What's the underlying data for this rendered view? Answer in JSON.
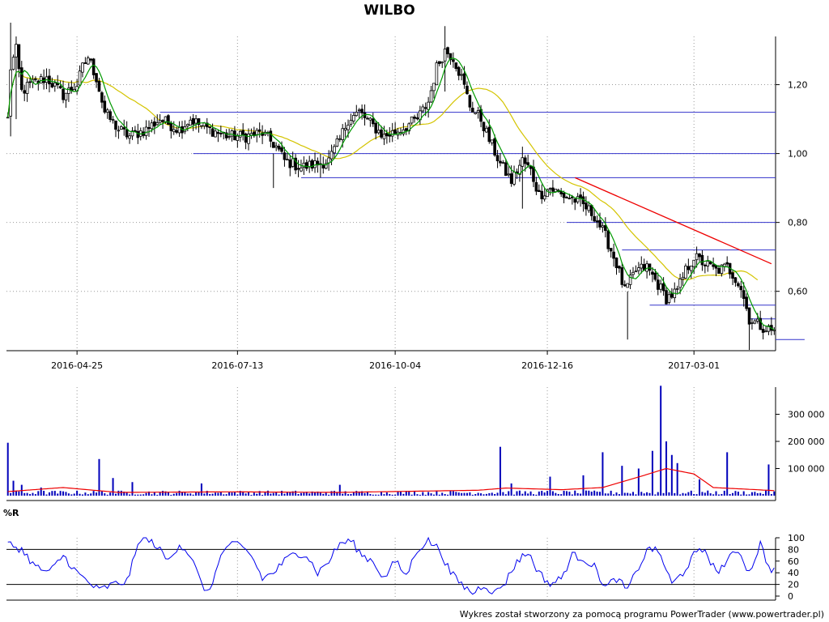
{
  "chart_data": {
    "type": "candlestick",
    "title": "WILBO",
    "credit": "Wykres został stworzony za pomocą programu PowerTrader (www.powertrader.pl)",
    "colors": {
      "candle": "#000000",
      "ma_fast": "#009900",
      "ma_slow": "#d4c400",
      "support_lines": "#3333cc",
      "trendline": "#ee0000",
      "volume": "#0000bb",
      "volume_ma": "#ee0000",
      "wr_line": "#0000ee",
      "level_lines": "#000000"
    },
    "x_ticks": [
      "2016-04-25",
      "2016-07-13",
      "2016-10-04",
      "2016-12-16",
      "2017-03-01"
    ],
    "x_tick_index": [
      25,
      83,
      140,
      195,
      248
    ],
    "bar_count": 278,
    "price_panel": {
      "ylim": [
        0.43,
        1.38
      ],
      "y_ticks": [
        1.2,
        1.0,
        0.8,
        0.6
      ],
      "y_tick_labels": [
        "1,20",
        "1,00",
        "0,80",
        "0,60"
      ],
      "anchors": [
        [
          0,
          1.1
        ],
        [
          1,
          1.25
        ],
        [
          3,
          1.3
        ],
        [
          5,
          1.18
        ],
        [
          8,
          1.2
        ],
        [
          14,
          1.22
        ],
        [
          20,
          1.17
        ],
        [
          25,
          1.2
        ],
        [
          27,
          1.25
        ],
        [
          29,
          1.28
        ],
        [
          32,
          1.22
        ],
        [
          35,
          1.12
        ],
        [
          40,
          1.07
        ],
        [
          44,
          1.05
        ],
        [
          50,
          1.07
        ],
        [
          55,
          1.1
        ],
        [
          62,
          1.07
        ],
        [
          66,
          1.1
        ],
        [
          70,
          1.08
        ],
        [
          76,
          1.06
        ],
        [
          80,
          1.05
        ],
        [
          86,
          1.05
        ],
        [
          92,
          1.06
        ],
        [
          97,
          1.02
        ],
        [
          100,
          0.98
        ],
        [
          106,
          0.96
        ],
        [
          112,
          0.97
        ],
        [
          116,
          0.98
        ],
        [
          120,
          1.04
        ],
        [
          123,
          1.1
        ],
        [
          127,
          1.12
        ],
        [
          132,
          1.08
        ],
        [
          136,
          1.05
        ],
        [
          142,
          1.07
        ],
        [
          148,
          1.1
        ],
        [
          152,
          1.15
        ],
        [
          155,
          1.25
        ],
        [
          158,
          1.3
        ],
        [
          161,
          1.28
        ],
        [
          164,
          1.22
        ],
        [
          167,
          1.14
        ],
        [
          171,
          1.1
        ],
        [
          174,
          1.04
        ],
        [
          178,
          0.97
        ],
        [
          182,
          0.92
        ],
        [
          186,
          0.98
        ],
        [
          189,
          0.95
        ],
        [
          192,
          0.88
        ],
        [
          196,
          0.9
        ],
        [
          200,
          0.88
        ],
        [
          204,
          0.87
        ],
        [
          208,
          0.85
        ],
        [
          212,
          0.82
        ],
        [
          216,
          0.76
        ],
        [
          220,
          0.68
        ],
        [
          223,
          0.6
        ],
        [
          227,
          0.66
        ],
        [
          231,
          0.67
        ],
        [
          235,
          0.62
        ],
        [
          238,
          0.58
        ],
        [
          242,
          0.6
        ],
        [
          245,
          0.66
        ],
        [
          248,
          0.7
        ],
        [
          252,
          0.68
        ],
        [
          256,
          0.66
        ],
        [
          260,
          0.67
        ],
        [
          263,
          0.64
        ],
        [
          265,
          0.61
        ],
        [
          268,
          0.52
        ],
        [
          272,
          0.5
        ],
        [
          275,
          0.49
        ],
        [
          278,
          0.48
        ]
      ],
      "spikes": [
        {
          "i": 1,
          "high": 1.38,
          "low": 1.05
        },
        {
          "i": 3,
          "high": 1.34,
          "low": 1.1
        },
        {
          "i": 158,
          "high": 1.37,
          "low": 1.18
        },
        {
          "i": 186,
          "high": 1.02,
          "low": 0.84
        },
        {
          "i": 224,
          "high": 0.6,
          "low": 0.46
        },
        {
          "i": 268,
          "high": 0.53,
          "low": 0.43
        },
        {
          "i": 96,
          "high": 1.0,
          "low": 0.9
        },
        {
          "i": 113,
          "high": 1.0,
          "low": 0.93
        }
      ],
      "support_lines": [
        {
          "y": 1.12,
          "from": 55,
          "to": 290
        },
        {
          "y": 1.0,
          "from": 67,
          "to": 290
        },
        {
          "y": 0.93,
          "from": 106,
          "to": 290
        },
        {
          "y": 0.8,
          "from": 202,
          "to": 290
        },
        {
          "y": 0.72,
          "from": 222,
          "to": 290
        },
        {
          "y": 0.56,
          "from": 232,
          "to": 290
        },
        {
          "y": 0.52,
          "from": 268,
          "to": 290
        },
        {
          "y": 0.46,
          "from": 288,
          "to": 310
        }
      ],
      "trendline": {
        "from": [
          205,
          0.93
        ],
        "to": [
          276,
          0.68
        ]
      }
    },
    "volume_panel": {
      "ylim": [
        0,
        400000
      ],
      "y_ticks": [
        300000,
        200000,
        100000
      ],
      "y_tick_labels": [
        "300 000",
        "200 000",
        "100 000"
      ],
      "base": 10000,
      "spikes": [
        {
          "i": 0,
          "v": 195000
        },
        {
          "i": 2,
          "v": 55000
        },
        {
          "i": 5,
          "v": 40000
        },
        {
          "i": 12,
          "v": 30000
        },
        {
          "i": 33,
          "v": 135000
        },
        {
          "i": 38,
          "v": 65000
        },
        {
          "i": 45,
          "v": 50000
        },
        {
          "i": 70,
          "v": 45000
        },
        {
          "i": 120,
          "v": 40000
        },
        {
          "i": 178,
          "v": 180000
        },
        {
          "i": 182,
          "v": 45000
        },
        {
          "i": 196,
          "v": 70000
        },
        {
          "i": 208,
          "v": 75000
        },
        {
          "i": 215,
          "v": 160000
        },
        {
          "i": 222,
          "v": 110000
        },
        {
          "i": 228,
          "v": 100000
        },
        {
          "i": 233,
          "v": 165000
        },
        {
          "i": 236,
          "v": 405000
        },
        {
          "i": 238,
          "v": 200000
        },
        {
          "i": 240,
          "v": 150000
        },
        {
          "i": 242,
          "v": 120000
        },
        {
          "i": 250,
          "v": 60000
        },
        {
          "i": 260,
          "v": 160000
        },
        {
          "i": 275,
          "v": 115000
        }
      ],
      "ma_anchors": [
        [
          0,
          15000
        ],
        [
          20,
          30000
        ],
        [
          40,
          12000
        ],
        [
          80,
          14000
        ],
        [
          120,
          12000
        ],
        [
          170,
          20000
        ],
        [
          180,
          28000
        ],
        [
          200,
          22000
        ],
        [
          215,
          30000
        ],
        [
          230,
          75000
        ],
        [
          238,
          100000
        ],
        [
          248,
          80000
        ],
        [
          255,
          30000
        ],
        [
          265,
          25000
        ],
        [
          278,
          18000
        ]
      ]
    },
    "wr_panel": {
      "label": "%R",
      "ylim": [
        0,
        100
      ],
      "y_ticks": [
        100,
        80,
        60,
        40,
        20,
        0
      ],
      "y_tick_labels": [
        "100",
        "80",
        "60",
        "40",
        "20",
        "0"
      ],
      "levels": [
        80,
        20
      ],
      "anchors": [
        [
          0,
          90
        ],
        [
          5,
          80
        ],
        [
          10,
          50
        ],
        [
          15,
          40
        ],
        [
          20,
          70
        ],
        [
          25,
          40
        ],
        [
          30,
          20
        ],
        [
          33,
          10
        ],
        [
          38,
          20
        ],
        [
          43,
          25
        ],
        [
          48,
          100
        ],
        [
          53,
          90
        ],
        [
          58,
          60
        ],
        [
          62,
          90
        ],
        [
          66,
          70
        ],
        [
          70,
          20
        ],
        [
          73,
          5
        ],
        [
          76,
          60
        ],
        [
          80,
          90
        ],
        [
          84,
          85
        ],
        [
          88,
          70
        ],
        [
          92,
          30
        ],
        [
          96,
          40
        ],
        [
          100,
          60
        ],
        [
          104,
          75
        ],
        [
          108,
          70
        ],
        [
          112,
          40
        ],
        [
          116,
          60
        ],
        [
          120,
          90
        ],
        [
          124,
          95
        ],
        [
          128,
          70
        ],
        [
          132,
          60
        ],
        [
          136,
          30
        ],
        [
          140,
          60
        ],
        [
          144,
          35
        ],
        [
          148,
          80
        ],
        [
          152,
          95
        ],
        [
          156,
          80
        ],
        [
          160,
          40
        ],
        [
          164,
          20
        ],
        [
          168,
          5
        ],
        [
          172,
          20
        ],
        [
          176,
          5
        ],
        [
          180,
          25
        ],
        [
          184,
          60
        ],
        [
          188,
          75
        ],
        [
          192,
          40
        ],
        [
          196,
          20
        ],
        [
          200,
          30
        ],
        [
          204,
          70
        ],
        [
          208,
          65
        ],
        [
          212,
          50
        ],
        [
          216,
          15
        ],
        [
          220,
          30
        ],
        [
          224,
          10
        ],
        [
          228,
          50
        ],
        [
          232,
          85
        ],
        [
          236,
          70
        ],
        [
          240,
          20
        ],
        [
          244,
          40
        ],
        [
          248,
          70
        ],
        [
          252,
          80
        ],
        [
          256,
          40
        ],
        [
          260,
          60
        ],
        [
          264,
          80
        ],
        [
          268,
          40
        ],
        [
          272,
          90
        ],
        [
          275,
          50
        ],
        [
          278,
          40
        ]
      ]
    }
  }
}
